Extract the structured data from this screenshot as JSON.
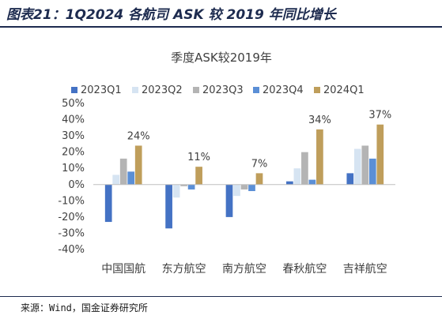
{
  "figure": {
    "title": "图表21：1Q2024 各航司 ASK 较 2019 年同比增长",
    "source": "来源：Wind，国金证券研究所"
  },
  "chart_data": {
    "type": "bar",
    "title": "季度ASK较2019年",
    "xlabel": "",
    "ylabel": "",
    "categories": [
      "中国国航",
      "东方航空",
      "南方航空",
      "春秋航空",
      "吉祥航空"
    ],
    "series": [
      {
        "name": "2023Q1",
        "color": "#4472c4",
        "values": [
          -23,
          -27,
          -20,
          2,
          7
        ]
      },
      {
        "name": "2023Q2",
        "color": "#d6e4f2",
        "values": [
          6,
          -8,
          -7,
          10,
          22
        ]
      },
      {
        "name": "2023Q3",
        "color": "#b4b4b4",
        "values": [
          16,
          -1,
          -3,
          20,
          24
        ]
      },
      {
        "name": "2023Q4",
        "color": "#5b8fd6",
        "values": [
          8,
          -3,
          -4,
          3,
          16
        ]
      },
      {
        "name": "2024Q1",
        "color": "#bf9e5b",
        "values": [
          24,
          11,
          7,
          34,
          37
        ]
      }
    ],
    "data_labels": [
      {
        "category": "中国国航",
        "series": "2024Q1",
        "text": "24%"
      },
      {
        "category": "东方航空",
        "series": "2024Q1",
        "text": "11%"
      },
      {
        "category": "南方航空",
        "series": "2024Q1",
        "text": "7%"
      },
      {
        "category": "春秋航空",
        "series": "2024Q1",
        "text": "34%"
      },
      {
        "category": "吉祥航空",
        "series": "2024Q1",
        "text": "37%"
      }
    ],
    "ylim": [
      -40,
      50
    ],
    "yticks": [
      -40,
      -30,
      -20,
      -10,
      0,
      10,
      20,
      30,
      40,
      50
    ],
    "ytick_format": "percent",
    "grid": false,
    "legend_position": "top"
  }
}
